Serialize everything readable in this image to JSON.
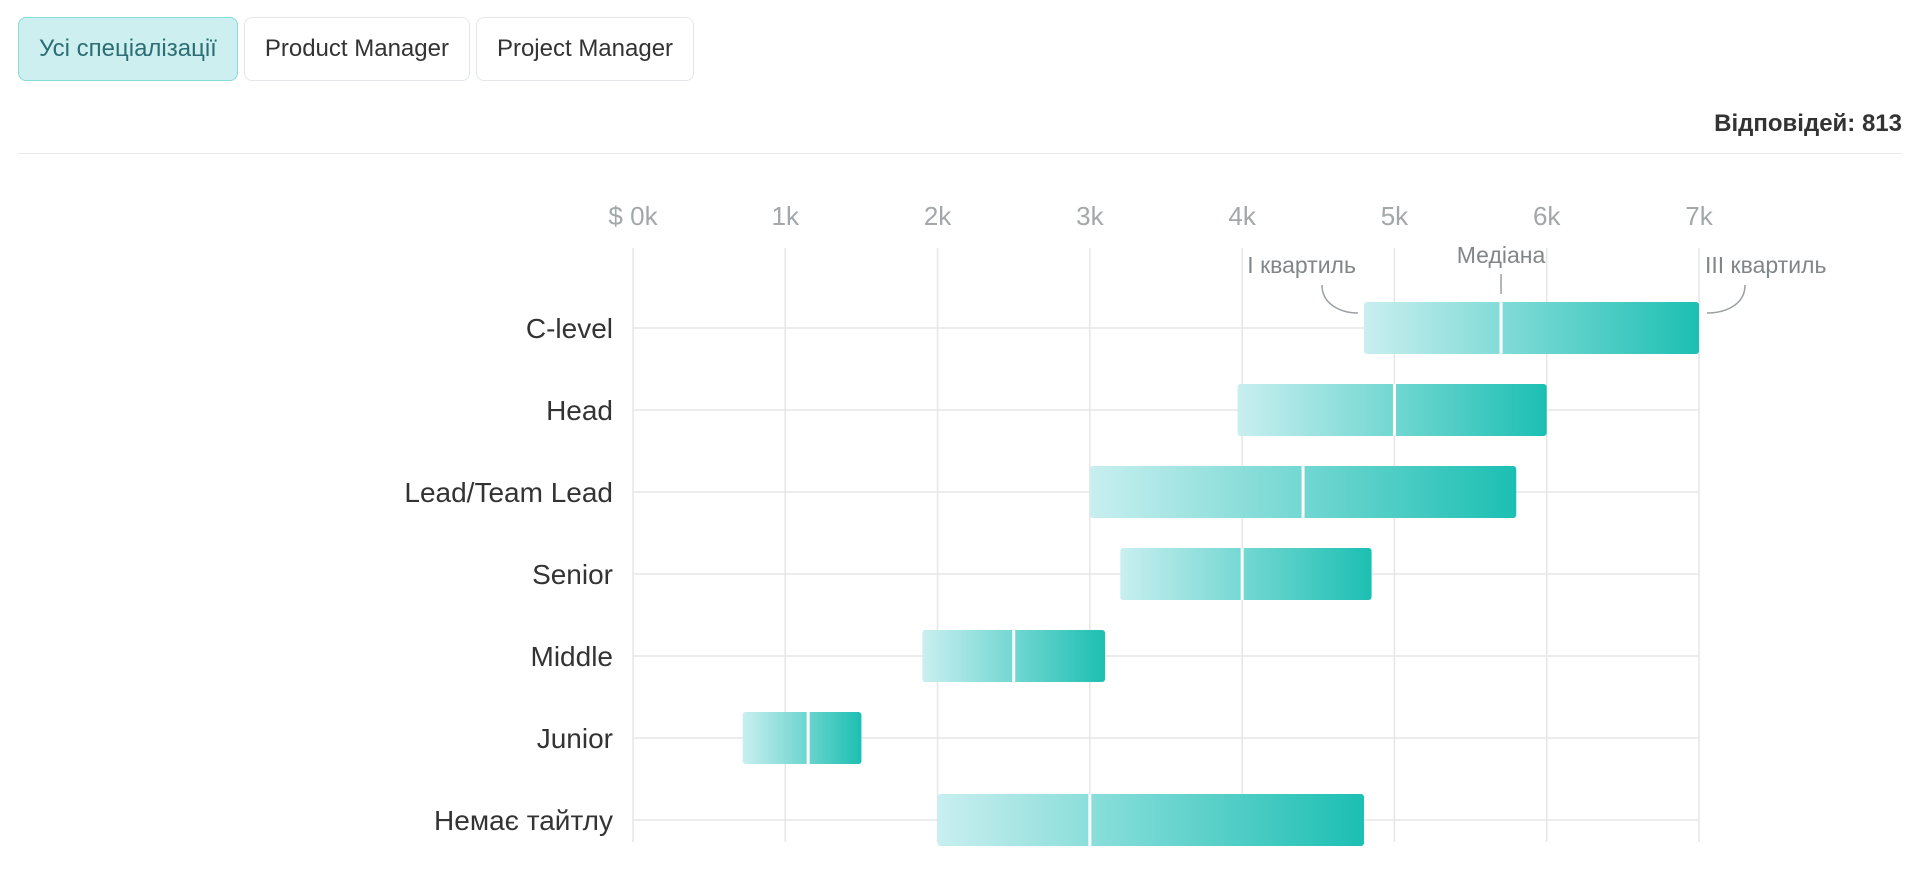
{
  "tabs": [
    {
      "label": "Усі спеціалізації",
      "active": true
    },
    {
      "label": "Product Manager",
      "active": false
    },
    {
      "label": "Project Manager",
      "active": false
    }
  ],
  "responses_text": "Відповідей: 813",
  "colors": {
    "accent": "#1cbfb3",
    "accent_light": "#c9eff0",
    "active_tab_bg": "#cdeff0",
    "grid": "#e6e6e6"
  },
  "chart_data": {
    "type": "bar",
    "subtype": "range (interquartile box with median)",
    "x_ticks": [
      "$ 0k",
      "1k",
      "2k",
      "3k",
      "4k",
      "5k",
      "6k",
      "7k"
    ],
    "xlim": [
      0,
      7000
    ],
    "x_unit": "$",
    "annotations": {
      "q1": "I квартиль",
      "median": "Медіана",
      "q3": "III квартиль"
    },
    "categories": [
      "C-level",
      "Head",
      "Lead/Team Lead",
      "Senior",
      "Middle",
      "Junior",
      "Немає тайтлу"
    ],
    "q1": [
      4800,
      3970,
      3000,
      3200,
      1900,
      720,
      2000
    ],
    "median": [
      5700,
      5000,
      4400,
      4000,
      2500,
      1150,
      3000
    ],
    "q3": [
      7000,
      6000,
      5800,
      4850,
      3100,
      1500,
      4800
    ],
    "grid": true
  }
}
